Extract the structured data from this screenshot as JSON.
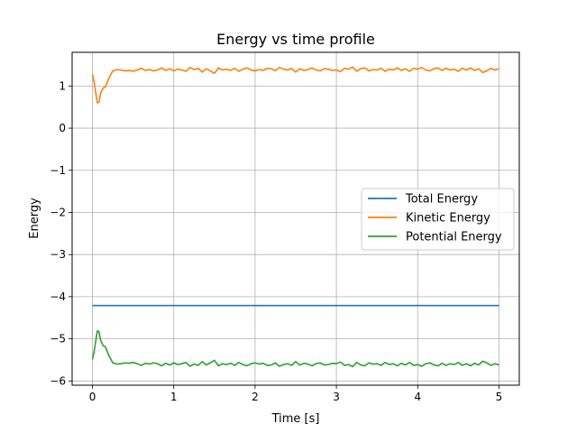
{
  "chart_data": {
    "type": "line",
    "title": "Energy vs time profile",
    "xlabel": "Time [s]",
    "ylabel": "Energy",
    "xlim": [
      -0.25,
      5.25
    ],
    "ylim": [
      -6.1,
      1.8
    ],
    "xticks": [
      0,
      1,
      2,
      3,
      4,
      5
    ],
    "yticks": [
      -6,
      -5,
      -4,
      -3,
      -2,
      -1,
      0,
      1
    ],
    "grid": true,
    "legend_position": "center-right",
    "series": [
      {
        "name": "Total Energy",
        "color": "#1f77b4",
        "x": [
          0,
          5
        ],
        "y": [
          -4.21,
          -4.21
        ]
      },
      {
        "name": "Kinetic Energy",
        "color": "#ff7f0e",
        "x": [
          0,
          0.02,
          0.04,
          0.06,
          0.08,
          0.1,
          0.13,
          0.16,
          0.2,
          0.25,
          0.3,
          0.35,
          0.4,
          0.45,
          0.5,
          0.55,
          0.6,
          0.65,
          0.7,
          0.75,
          0.8,
          0.85,
          0.9,
          0.95,
          1.0,
          1.05,
          1.1,
          1.15,
          1.2,
          1.25,
          1.3,
          1.35,
          1.4,
          1.45,
          1.5,
          1.55,
          1.6,
          1.65,
          1.7,
          1.75,
          1.8,
          1.85,
          1.9,
          1.95,
          2.0,
          2.05,
          2.1,
          2.15,
          2.2,
          2.25,
          2.3,
          2.35,
          2.4,
          2.45,
          2.5,
          2.55,
          2.6,
          2.65,
          2.7,
          2.75,
          2.8,
          2.85,
          2.9,
          2.95,
          3.0,
          3.05,
          3.1,
          3.15,
          3.2,
          3.25,
          3.3,
          3.35,
          3.4,
          3.45,
          3.5,
          3.55,
          3.6,
          3.65,
          3.7,
          3.75,
          3.8,
          3.85,
          3.9,
          3.95,
          4.0,
          4.05,
          4.1,
          4.15,
          4.2,
          4.25,
          4.3,
          4.35,
          4.4,
          4.45,
          4.5,
          4.55,
          4.6,
          4.65,
          4.7,
          4.75,
          4.8,
          4.85,
          4.9,
          4.95,
          5.0
        ],
        "y": [
          1.28,
          1.1,
          0.85,
          0.6,
          0.62,
          0.82,
          0.95,
          0.98,
          1.18,
          1.36,
          1.39,
          1.38,
          1.36,
          1.37,
          1.35,
          1.38,
          1.42,
          1.37,
          1.39,
          1.36,
          1.38,
          1.43,
          1.37,
          1.41,
          1.36,
          1.4,
          1.38,
          1.35,
          1.44,
          1.39,
          1.42,
          1.33,
          1.41,
          1.36,
          1.3,
          1.43,
          1.38,
          1.4,
          1.37,
          1.42,
          1.35,
          1.4,
          1.43,
          1.38,
          1.36,
          1.39,
          1.37,
          1.42,
          1.41,
          1.36,
          1.44,
          1.4,
          1.38,
          1.42,
          1.33,
          1.41,
          1.37,
          1.39,
          1.43,
          1.38,
          1.36,
          1.41,
          1.4,
          1.37,
          1.38,
          1.34,
          1.42,
          1.4,
          1.45,
          1.35,
          1.41,
          1.43,
          1.36,
          1.39,
          1.38,
          1.42,
          1.35,
          1.4,
          1.38,
          1.43,
          1.37,
          1.41,
          1.35,
          1.42,
          1.4,
          1.44,
          1.38,
          1.36,
          1.41,
          1.43,
          1.37,
          1.42,
          1.38,
          1.4,
          1.35,
          1.42,
          1.38,
          1.43,
          1.37,
          1.41,
          1.32,
          1.36,
          1.42,
          1.38,
          1.41
        ]
      },
      {
        "name": "Potential Energy",
        "color": "#2ca02c",
        "x": [
          0,
          0.02,
          0.04,
          0.06,
          0.08,
          0.1,
          0.13,
          0.16,
          0.2,
          0.25,
          0.3,
          0.35,
          0.4,
          0.45,
          0.5,
          0.55,
          0.6,
          0.65,
          0.7,
          0.75,
          0.8,
          0.85,
          0.9,
          0.95,
          1.0,
          1.05,
          1.1,
          1.15,
          1.2,
          1.25,
          1.3,
          1.35,
          1.4,
          1.45,
          1.5,
          1.55,
          1.6,
          1.65,
          1.7,
          1.75,
          1.8,
          1.85,
          1.9,
          1.95,
          2.0,
          2.05,
          2.1,
          2.15,
          2.2,
          2.25,
          2.3,
          2.35,
          2.4,
          2.45,
          2.5,
          2.55,
          2.6,
          2.65,
          2.7,
          2.75,
          2.8,
          2.85,
          2.9,
          2.95,
          3.0,
          3.05,
          3.1,
          3.15,
          3.2,
          3.25,
          3.3,
          3.35,
          3.4,
          3.45,
          3.5,
          3.55,
          3.6,
          3.65,
          3.7,
          3.75,
          3.8,
          3.85,
          3.9,
          3.95,
          4.0,
          4.05,
          4.1,
          4.15,
          4.2,
          4.25,
          4.3,
          4.35,
          4.4,
          4.45,
          4.5,
          4.55,
          4.6,
          4.65,
          4.7,
          4.75,
          4.8,
          4.85,
          4.9,
          4.95,
          5.0
        ],
        "y": [
          -5.49,
          -5.31,
          -5.06,
          -4.81,
          -4.83,
          -5.03,
          -5.16,
          -5.19,
          -5.39,
          -5.57,
          -5.6,
          -5.59,
          -5.57,
          -5.58,
          -5.56,
          -5.59,
          -5.63,
          -5.58,
          -5.6,
          -5.57,
          -5.59,
          -5.64,
          -5.58,
          -5.62,
          -5.57,
          -5.61,
          -5.59,
          -5.56,
          -5.65,
          -5.6,
          -5.63,
          -5.54,
          -5.62,
          -5.57,
          -5.51,
          -5.64,
          -5.59,
          -5.61,
          -5.58,
          -5.63,
          -5.56,
          -5.61,
          -5.64,
          -5.59,
          -5.57,
          -5.6,
          -5.58,
          -5.63,
          -5.62,
          -5.57,
          -5.65,
          -5.61,
          -5.59,
          -5.63,
          -5.54,
          -5.62,
          -5.58,
          -5.6,
          -5.64,
          -5.59,
          -5.57,
          -5.62,
          -5.61,
          -5.58,
          -5.59,
          -5.55,
          -5.63,
          -5.61,
          -5.66,
          -5.56,
          -5.62,
          -5.64,
          -5.57,
          -5.6,
          -5.59,
          -5.63,
          -5.56,
          -5.61,
          -5.59,
          -5.64,
          -5.58,
          -5.62,
          -5.56,
          -5.63,
          -5.61,
          -5.65,
          -5.59,
          -5.57,
          -5.62,
          -5.64,
          -5.58,
          -5.63,
          -5.59,
          -5.61,
          -5.56,
          -5.63,
          -5.59,
          -5.64,
          -5.58,
          -5.62,
          -5.53,
          -5.57,
          -5.63,
          -5.59,
          -5.62
        ]
      }
    ]
  }
}
